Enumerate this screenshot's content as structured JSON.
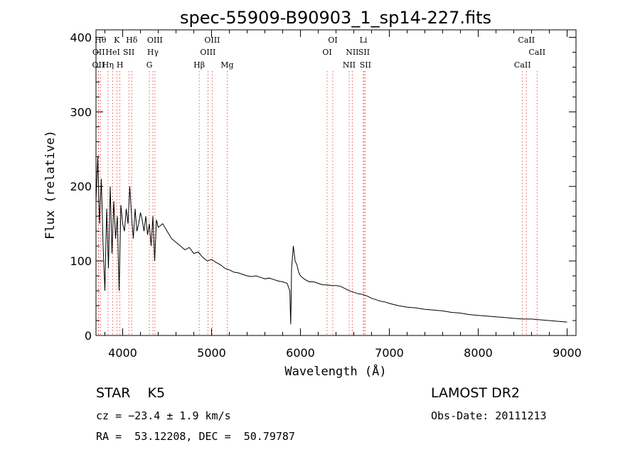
{
  "chart_data": {
    "type": "line",
    "title": "spec-55909-B90903_1_sp14-227.fits",
    "xlabel": "Wavelength (Å)",
    "ylabel": "Flux (relative)",
    "xlim": [
      3700,
      9100
    ],
    "ylim": [
      0,
      410
    ],
    "x_ticks": [
      4000,
      5000,
      6000,
      7000,
      8000,
      9000
    ],
    "y_ticks": [
      0,
      100,
      200,
      300,
      400
    ],
    "grid": false,
    "series": [
      {
        "color": "#000000",
        "x": [
          3700,
          3720,
          3740,
          3760,
          3780,
          3800,
          3820,
          3840,
          3860,
          3880,
          3900,
          3920,
          3940,
          3960,
          3980,
          4000,
          4020,
          4040,
          4060,
          4080,
          4100,
          4120,
          4140,
          4160,
          4180,
          4200,
          4220,
          4240,
          4260,
          4280,
          4300,
          4320,
          4340,
          4360,
          4380,
          4400,
          4450,
          4500,
          4550,
          4600,
          4650,
          4700,
          4750,
          4800,
          4850,
          4900,
          4950,
          5000,
          5050,
          5100,
          5150,
          5200,
          5250,
          5300,
          5350,
          5400,
          5450,
          5500,
          5550,
          5600,
          5650,
          5700,
          5750,
          5800,
          5850,
          5880,
          5890,
          5895,
          5900,
          5920,
          5940,
          5960,
          5980,
          6000,
          6050,
          6100,
          6150,
          6200,
          6250,
          6300,
          6350,
          6400,
          6450,
          6500,
          6550,
          6600,
          6650,
          6700,
          6750,
          6800,
          6850,
          6900,
          6950,
          7000,
          7100,
          7200,
          7300,
          7400,
          7500,
          7600,
          7700,
          7800,
          7900,
          8000,
          8100,
          8200,
          8300,
          8400,
          8500,
          8600,
          8700,
          8800,
          8900,
          9000
        ],
        "y": [
          180,
          240,
          150,
          210,
          120,
          60,
          170,
          90,
          200,
          110,
          180,
          130,
          160,
          60,
          175,
          150,
          140,
          170,
          150,
          200,
          160,
          130,
          170,
          140,
          150,
          165,
          155,
          140,
          160,
          135,
          150,
          120,
          160,
          100,
          155,
          145,
          150,
          140,
          130,
          125,
          120,
          115,
          118,
          110,
          112,
          105,
          100,
          102,
          98,
          95,
          90,
          88,
          85,
          84,
          82,
          80,
          79,
          80,
          78,
          76,
          77,
          75,
          73,
          72,
          70,
          60,
          15,
          45,
          90,
          120,
          100,
          95,
          85,
          80,
          75,
          72,
          72,
          70,
          68,
          68,
          67,
          67,
          66,
          63,
          60,
          58,
          56,
          55,
          53,
          50,
          48,
          46,
          45,
          43,
          40,
          38,
          37,
          35,
          34,
          33,
          31,
          30,
          28,
          27,
          26,
          25,
          24,
          23,
          22,
          22,
          21,
          20,
          19,
          18
        ]
      }
    ],
    "lines": [
      {
        "x": 3727,
        "labels": [
          "OII"
        ],
        "row": 2
      },
      {
        "x": 3730,
        "labels": [
          "OII"
        ],
        "row": 1
      },
      {
        "x": 3750,
        "labels": [
          "Hθ"
        ],
        "row": 0
      },
      {
        "x": 3835,
        "labels": [
          "Hη"
        ],
        "row": 2
      },
      {
        "x": 3889,
        "labels": [
          "HeI"
        ],
        "row": 1
      },
      {
        "x": 3934,
        "labels": [
          "K"
        ],
        "row": 0
      },
      {
        "x": 3969,
        "labels": [
          "H"
        ],
        "row": 2
      },
      {
        "x": 4069,
        "labels": [
          "SII"
        ],
        "row": 1
      },
      {
        "x": 4102,
        "labels": [
          "Hδ"
        ],
        "row": 0
      },
      {
        "x": 4300,
        "labels": [
          "G"
        ],
        "row": 2
      },
      {
        "x": 4340,
        "labels": [
          "Hγ"
        ],
        "row": 1
      },
      {
        "x": 4363,
        "labels": [
          "OIII"
        ],
        "row": 0
      },
      {
        "x": 4861,
        "labels": [
          "Hβ"
        ],
        "row": 2
      },
      {
        "x": 4959,
        "labels": [
          "OIII"
        ],
        "row": 1
      },
      {
        "x": 5007,
        "labels": [
          "OIII"
        ],
        "row": 0
      },
      {
        "x": 5175,
        "labels": [
          "Mg"
        ],
        "row": 2
      },
      {
        "x": 6300,
        "labels": [
          "OI"
        ],
        "row": 1
      },
      {
        "x": 6364,
        "labels": [
          "OI"
        ],
        "row": 0
      },
      {
        "x": 6548,
        "labels": [
          "NII"
        ],
        "row": 2
      },
      {
        "x": 6583,
        "labels": [
          "NII"
        ],
        "row": 1
      },
      {
        "x": 6708,
        "labels": [
          "Li"
        ],
        "row": 0
      },
      {
        "x": 6716,
        "labels": [
          "SII"
        ],
        "row": 1
      },
      {
        "x": 6731,
        "labels": [
          "SII"
        ],
        "row": 2
      },
      {
        "x": 8498,
        "labels": [
          "CaII"
        ],
        "row": 2
      },
      {
        "x": 8542,
        "labels": [
          "CaII"
        ],
        "row": 0
      },
      {
        "x": 8662,
        "labels": [
          "CaII"
        ],
        "row": 1
      }
    ]
  },
  "footer": {
    "object": "STAR    K5",
    "survey": "LAMOST DR2",
    "velocity": "cz = −23.4 ± 1.9 km/s",
    "obs_date": "Obs-Date: 20111213",
    "coords": "RA =  53.12208, DEC =  50.79787"
  }
}
